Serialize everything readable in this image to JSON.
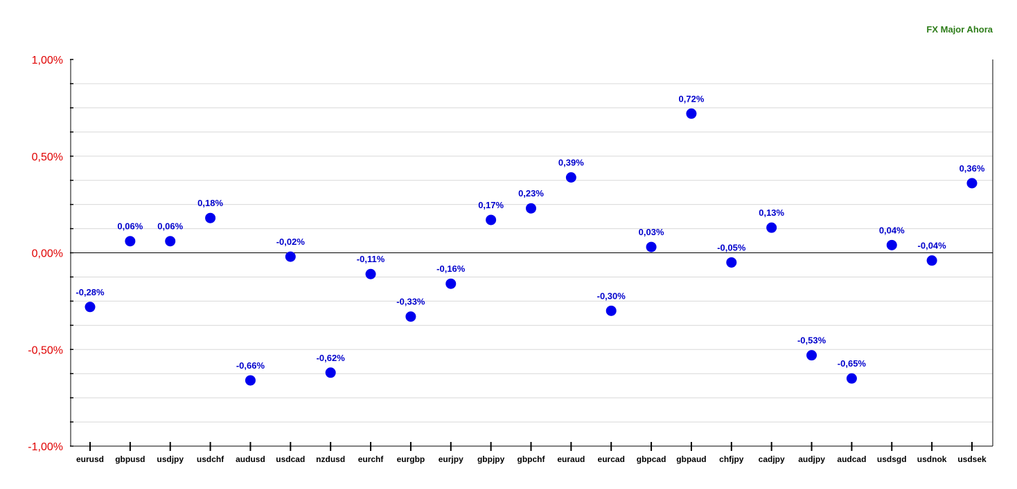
{
  "chart_data": {
    "type": "scatter",
    "title": "FX Major Ahora",
    "categories": [
      "eurusd",
      "gbpusd",
      "usdjpy",
      "usdchf",
      "audusd",
      "usdcad",
      "nzdusd",
      "eurchf",
      "eurgbp",
      "eurjpy",
      "gbpjpy",
      "gbpchf",
      "euraud",
      "eurcad",
      "gbpcad",
      "gbpaud",
      "chfjpy",
      "cadjpy",
      "audjpy",
      "audcad",
      "usdsgd",
      "usdnok",
      "usdsek"
    ],
    "values": [
      -0.28,
      0.06,
      0.06,
      0.18,
      -0.66,
      -0.02,
      -0.62,
      -0.11,
      -0.33,
      -0.16,
      0.17,
      0.23,
      0.39,
      -0.3,
      0.03,
      0.72,
      -0.05,
      0.13,
      -0.53,
      -0.65,
      0.04,
      -0.04,
      0.36
    ],
    "value_labels": [
      "-0,28%",
      "0,06%",
      "0,06%",
      "0,18%",
      "-0,66%",
      "-0,02%",
      "-0,62%",
      "-0,11%",
      "-0,33%",
      "-0,16%",
      "0,17%",
      "0,23%",
      "0,39%",
      "-0,30%",
      "0,03%",
      "0,72%",
      "-0,05%",
      "0,13%",
      "-0,53%",
      "-0,65%",
      "0,04%",
      "-0,04%",
      "0,36%"
    ],
    "ylim": [
      -1.0,
      1.0
    ],
    "yticks": [
      1.0,
      0.5,
      0.0,
      -0.5,
      -1.0
    ],
    "ytick_labels": [
      "1,00%",
      "0,50%",
      "0,00%",
      "-0,50%",
      "-1,00%"
    ],
    "grid": true,
    "colors": {
      "points": "#0000ee",
      "labels": "#0000cc",
      "yaxis_labels": "#e00000",
      "title": "#2e7d1a",
      "grid": "#d8d8d8"
    }
  }
}
